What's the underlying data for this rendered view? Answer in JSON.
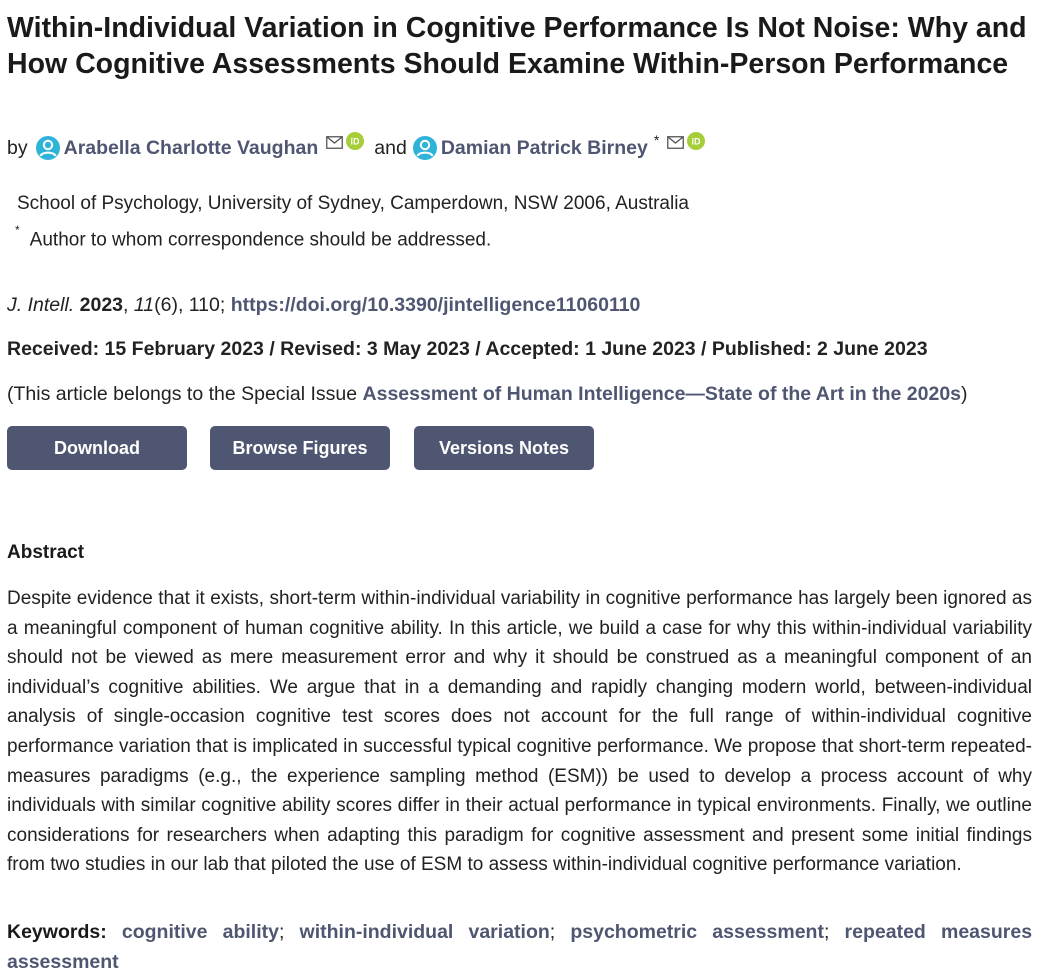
{
  "article": {
    "title": "Within-Individual Variation in Cognitive Performance Is Not Noise: Why and How Cognitive Assessments Should Examine Within-Person Performance",
    "by_label": "by",
    "and_label": "and",
    "authors": [
      {
        "name": "Arabella Charlotte Vaughan",
        "icons": [
          "person-icon",
          "mail-icon",
          "orcid-icon"
        ]
      },
      {
        "name": "Damian Patrick Birney",
        "corresponding_mark": "*",
        "icons": [
          "person-icon",
          "mail-icon",
          "orcid-icon"
        ]
      }
    ],
    "affiliation": "School of Psychology, University of Sydney, Camperdown, NSW 2006, Australia",
    "correspondence_mark": "*",
    "correspondence_note": "Author to whom correspondence should be addressed.",
    "citation": {
      "journal": "J. Intell.",
      "year": "2023",
      "volume": "11",
      "issue": "(6)",
      "article_number": ", 110;",
      "doi": "https://doi.org/10.3390/jintelligence11060110"
    },
    "dates": "Received: 15 February 2023 / Revised: 3 May 2023 / Accepted: 1 June 2023 / Published: 2 June 2023",
    "special_issue": {
      "prefix": "(This article belongs to the Special Issue ",
      "name": "Assessment of Human Intelligence—State of the Art in the 2020s",
      "suffix": ")"
    },
    "buttons": {
      "download": "Download",
      "browse_figures": "Browse Figures",
      "versions_notes": "Versions Notes"
    },
    "abstract_heading": "Abstract",
    "abstract": "Despite evidence that it exists, short-term within-individual variability in cognitive performance has largely been ignored as a meaningful component of human cognitive ability. In this article, we build a case for why this within-individual variability should not be viewed as mere measurement error and why it should be construed as a meaningful component of an individual’s cognitive abilities. We argue that in a demanding and rapidly changing modern world, between-individual analysis of single-occasion cognitive test scores does not account for the full range of within-individual cognitive performance variation that is implicated in successful typical cognitive performance. We propose that short-term repeated-measures paradigms (e.g., the experience sampling method (ESM)) be used to develop a process account of why individuals with similar cognitive ability scores differ in their actual performance in typical environments. Finally, we outline considerations for researchers when adapting this paradigm for cognitive assessment and present some initial findings from two studies in our lab that piloted the use of ESM to assess within-individual cognitive performance variation.",
    "keywords_label": "Keywords:",
    "keywords": [
      "cognitive ability",
      "within-individual variation",
      "psychometric assessment",
      "repeated measures assessment"
    ],
    "keyword_separator": ";"
  },
  "colors": {
    "link": "#4f5671",
    "button_bg": "#4f5671",
    "button_text": "#ffffff",
    "person_icon": "#2fb3d8",
    "orcid_icon": "#a6ce39"
  }
}
